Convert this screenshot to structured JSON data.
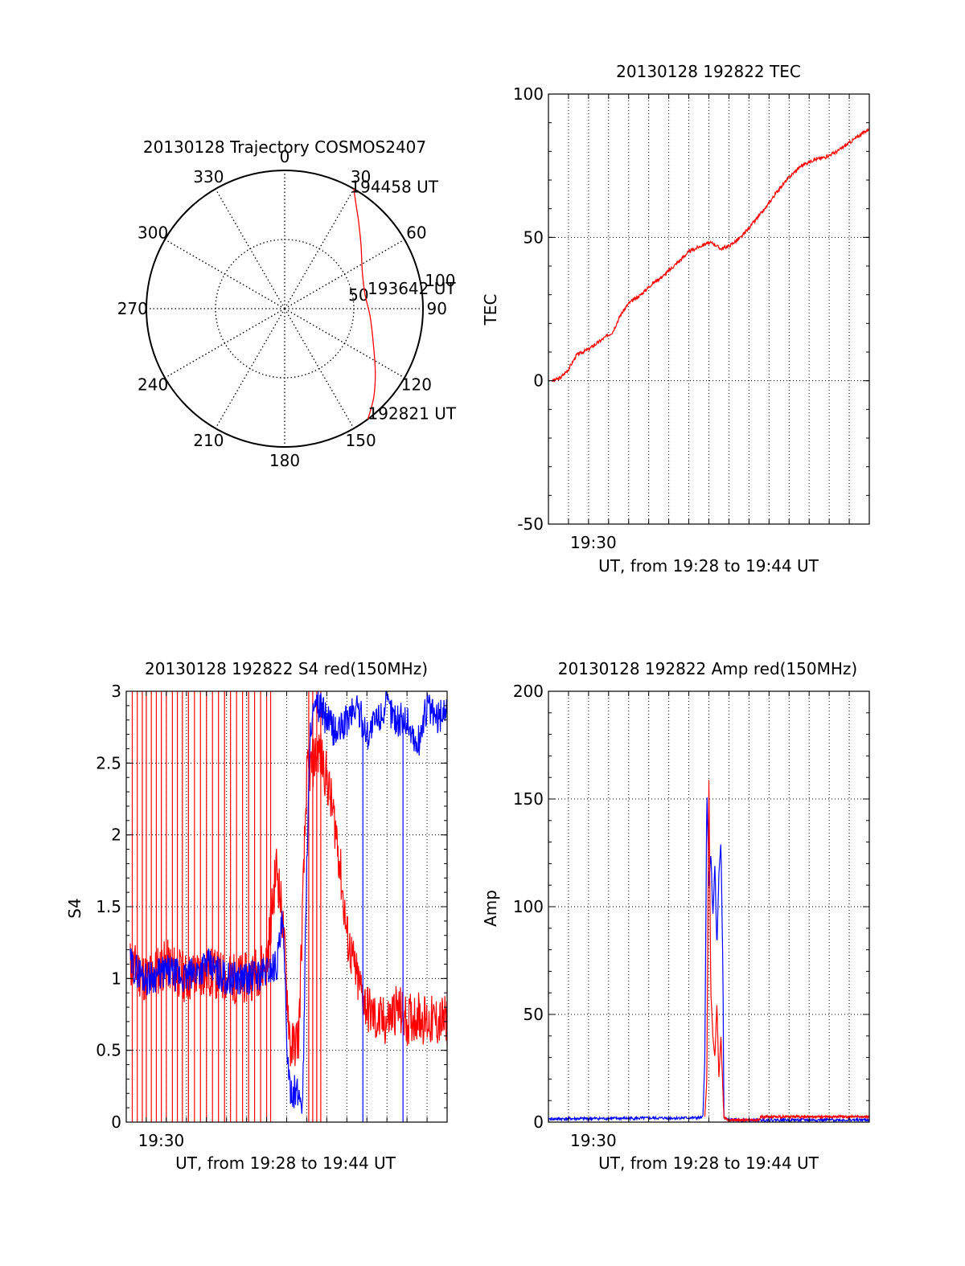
{
  "chart_data": [
    {
      "id": "polar",
      "type": "polar-trajectory",
      "title": "20130128 Trajectory COSMOS2407",
      "angle_labels": [
        "0",
        "30",
        "60",
        "90",
        "120",
        "150",
        "180",
        "210",
        "240",
        "270",
        "300",
        "330"
      ],
      "radial_labels": [
        "50",
        "100"
      ],
      "radial_max": 100,
      "color": "#ff0000",
      "points": [
        {
          "az": 143,
          "el": 100
        },
        {
          "az": 135,
          "el": 91
        },
        {
          "az": 125,
          "el": 80
        },
        {
          "az": 110,
          "el": 68
        },
        {
          "az": 95,
          "el": 62
        },
        {
          "az": 80,
          "el": 59
        },
        {
          "az": 65,
          "el": 62
        },
        {
          "az": 50,
          "el": 72
        },
        {
          "az": 40,
          "el": 83
        },
        {
          "az": 34,
          "el": 92
        },
        {
          "az": 30,
          "el": 100
        }
      ],
      "annotations": [
        {
          "text": "194458 UT",
          "az": 29,
          "el": 100
        },
        {
          "text": "193642 UT",
          "az": 83,
          "el": 58
        },
        {
          "text": "192821 UT",
          "az": 143,
          "el": 100
        }
      ]
    },
    {
      "id": "tec",
      "type": "line",
      "title": "20130128 192822 TEC",
      "xlabel": "UT, from 19:28 to 19:44 UT",
      "ylabel": "TEC",
      "xlim": [
        0,
        16
      ],
      "ylim": [
        -50,
        100
      ],
      "yticks": [
        -50,
        0,
        50,
        100
      ],
      "xtick_label": {
        "x": 2,
        "text": "19:30"
      },
      "grid": true,
      "series": [
        {
          "color": "#ff0000",
          "noise": 0.6,
          "seed": 3,
          "x": [
            0.2,
            0.6,
            1.0,
            1.4,
            2.0,
            2.6,
            3.2,
            3.6,
            4.0,
            4.6,
            5.2,
            5.8,
            6.4,
            7.0,
            7.6,
            7.9,
            8.2,
            8.6,
            9.0,
            9.6,
            10.2,
            10.8,
            11.4,
            12.0,
            12.6,
            13.2,
            13.8,
            14.4,
            15.0,
            15.6,
            16.0
          ],
          "y": [
            0,
            1,
            4,
            9,
            11,
            14,
            17,
            23,
            27,
            30,
            34,
            37,
            41,
            45,
            47,
            48,
            48,
            46,
            47,
            50,
            55,
            60,
            66,
            71,
            75,
            77,
            78,
            80,
            83,
            86,
            88
          ]
        }
      ]
    },
    {
      "id": "s4",
      "type": "line",
      "title": "20130128 192822 S4 red(150MHz)",
      "xlabel": "UT, from 19:28 to 19:44 UT",
      "ylabel": "S4",
      "xlim": [
        0,
        16
      ],
      "ylim": [
        0,
        3
      ],
      "yticks": [
        0,
        0.5,
        1,
        1.5,
        2,
        2.5,
        3
      ],
      "xtick_label": {
        "x": 1.5,
        "text": "19:30"
      },
      "grid": true,
      "series": [
        {
          "color": "#ff0000",
          "noise": 0.18,
          "seed": 11,
          "x": [
            0.2,
            1,
            2,
            3,
            4,
            5,
            6,
            7,
            7.5,
            7.8,
            8.2,
            8.6,
            9,
            9.6,
            10,
            10.5,
            11,
            11.5,
            12,
            12.5,
            13,
            13.5,
            14,
            14.5,
            15,
            15.5,
            16
          ],
          "y": [
            1.1,
            1.0,
            1.1,
            1.0,
            1.05,
            1.0,
            1.0,
            1.1,
            1.8,
            1.4,
            0.5,
            0.6,
            2.4,
            2.6,
            2.4,
            2.0,
            1.3,
            1.0,
            0.8,
            0.7,
            0.7,
            0.8,
            0.7,
            0.75,
            0.7,
            0.7,
            0.7
          ],
          "spikes": [
            0.3,
            0.55,
            0.8,
            1.0,
            1.25,
            1.5,
            1.75,
            2.0,
            2.3,
            2.55,
            2.8,
            3.1,
            3.4,
            3.7,
            4.0,
            4.3,
            4.6,
            4.9,
            5.2,
            5.5,
            5.8,
            6.1,
            6.4,
            6.7,
            7.0,
            7.2,
            9.1,
            9.3,
            9.5,
            9.7
          ]
        },
        {
          "color": "#0000ff",
          "noise": 0.12,
          "seed": 29,
          "x": [
            0.2,
            1,
            2,
            3,
            4,
            5,
            6,
            7,
            7.5,
            7.8,
            8.1,
            8.5,
            8.8,
            9.0,
            9.2,
            9.6,
            10,
            10.5,
            11,
            11.5,
            12,
            12.5,
            13,
            13.5,
            14,
            14.5,
            15,
            15.5,
            16
          ],
          "y": [
            1.1,
            1.0,
            1.05,
            1.0,
            1.1,
            1.0,
            1.0,
            1.05,
            1.1,
            1.4,
            0.25,
            0.2,
            0.15,
            1.8,
            2.8,
            2.9,
            2.8,
            2.7,
            2.8,
            2.9,
            2.7,
            2.8,
            2.9,
            2.8,
            2.8,
            2.6,
            2.9,
            2.8,
            2.9
          ],
          "dips": [
            11.8,
            13.8
          ]
        }
      ]
    },
    {
      "id": "amp",
      "type": "line",
      "title": "20130128 192822 Amp red(150MHz)",
      "xlabel": "UT, from 19:28 to 19:44 UT",
      "ylabel": "Amp",
      "xlim": [
        0,
        16
      ],
      "ylim": [
        0,
        200
      ],
      "yticks": [
        0,
        50,
        100,
        150,
        200
      ],
      "xtick_label": {
        "x": 2,
        "text": "19:30"
      },
      "grid": true,
      "series": [
        {
          "color": "#0000ff",
          "noise": 0.5,
          "seed": 41,
          "x": [
            0,
            7.7,
            7.8,
            7.9,
            8.0,
            8.1,
            8.2,
            8.3,
            8.4,
            8.5,
            8.6,
            8.7,
            8.75,
            9,
            10.5,
            16
          ],
          "y": [
            1.5,
            2,
            30,
            155,
            110,
            125,
            95,
            120,
            80,
            115,
            130,
            70,
            2,
            1,
            1,
            1
          ]
        },
        {
          "color": "#ff0000",
          "noise": 0.4,
          "seed": 53,
          "x": [
            7.8,
            7.9,
            8.0,
            8.1,
            8.2,
            8.3,
            8.4,
            8.5,
            8.6,
            8.7,
            8.75,
            9,
            10.5,
            10.6,
            16
          ],
          "y": [
            3,
            20,
            160,
            60,
            40,
            30,
            55,
            20,
            40,
            15,
            2,
            1,
            1,
            2.5,
            2.5
          ]
        }
      ]
    }
  ]
}
